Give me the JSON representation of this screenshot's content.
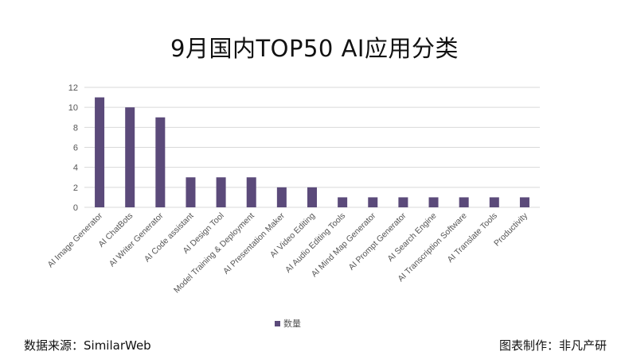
{
  "title": "9月国内TOP50 AI应用分类",
  "footer": {
    "source": "数据来源：SimilarWeb",
    "credit": "图表制作：非凡产研"
  },
  "chart_data": {
    "type": "bar",
    "categories": [
      "AI Image Generator",
      "AI ChatBots",
      "AI Writer Generator",
      "AI Code assistant",
      "AI Design Tool",
      "Model Training & Deployment",
      "AI Presentation Maker",
      "AI Video Editing",
      "AI Audio Editing Tools",
      "AI Mind Map Generator",
      "AI Prompt Generator",
      "AI Search Engine",
      "AI Transcription Software",
      "AI Translate Tools",
      "Productivity"
    ],
    "series": [
      {
        "name": "数量",
        "values": [
          11,
          10,
          9,
          3,
          3,
          3,
          2,
          2,
          1,
          1,
          1,
          1,
          1,
          1,
          1
        ],
        "color": "#5b4a7a"
      }
    ],
    "yticks": [
      0,
      2,
      4,
      6,
      8,
      10,
      12
    ],
    "ylim": [
      0,
      12
    ],
    "grid": true,
    "legend": "bottom-center",
    "gridColor": "#d9d9d9",
    "textColor": "#555555"
  }
}
